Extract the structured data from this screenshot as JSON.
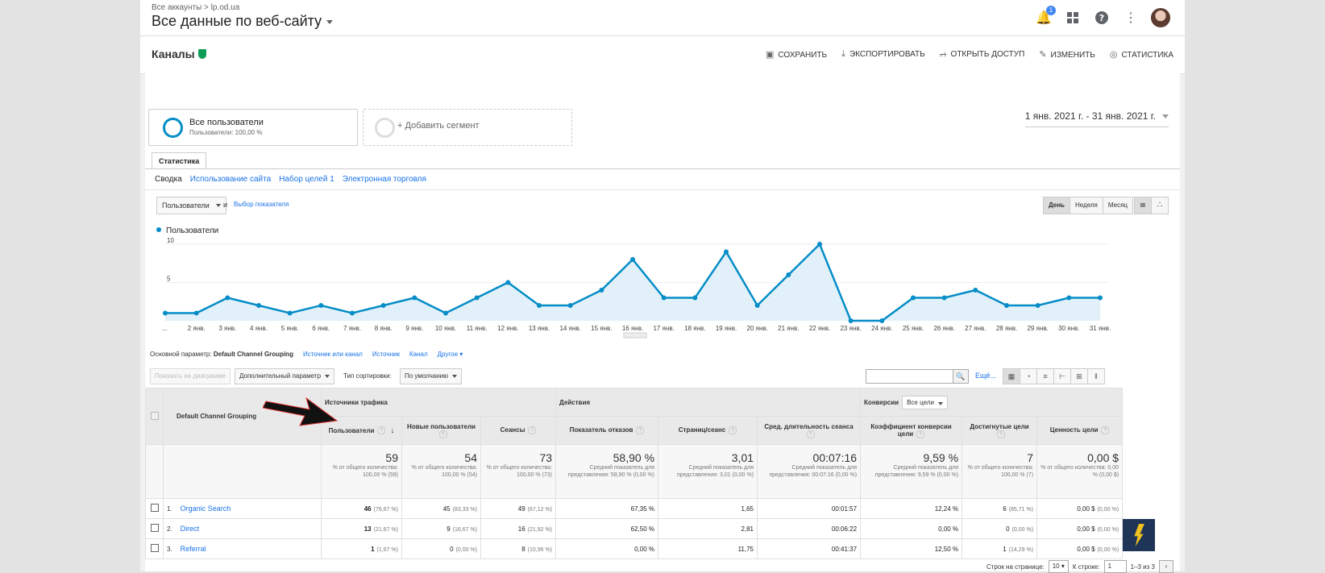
{
  "breadcrumb": "Все аккаунты  >  lp.od.ua",
  "view_title": "Все данные по веб-сайту",
  "notifications_count": "1",
  "report": {
    "title": "Каналы",
    "actions": [
      "СОХРАНИТЬ",
      "ЭКСПОРТИРОВАТЬ",
      "ОТКРЫТЬ ДОСТУП",
      "ИЗМЕНИТЬ",
      "СТАТИСТИКА"
    ]
  },
  "segments": {
    "active_title": "Все пользователи",
    "active_sub": "Пользователи: 100,00 %",
    "add": "+ Добавить сегмент"
  },
  "date_range": "1 янв. 2021 г. - 31 янв. 2021 г.",
  "tab": "Статистика",
  "subtabs": [
    "Сводка",
    "Использование сайта",
    "Набор целей 1",
    "Электронная торговля"
  ],
  "metric_select": "Пользователи",
  "and_label": "и",
  "pick_metric": "Выбор показателя",
  "period_buttons": [
    "День",
    "Неделя",
    "Месяц"
  ],
  "legend_label": "Пользователи",
  "chart_data": {
    "type": "area",
    "series": [
      {
        "name": "Пользователи",
        "values": [
          1,
          1,
          3,
          2,
          1,
          2,
          1,
          2,
          3,
          1,
          3,
          5,
          2,
          2,
          4,
          8,
          3,
          3,
          9,
          2,
          6,
          10,
          0,
          0,
          3,
          3,
          4,
          2,
          2,
          3,
          3
        ]
      }
    ],
    "x": [
      "...",
      "2 янв.",
      "3 янв.",
      "4 янв.",
      "5 янв.",
      "6 янв.",
      "7 янв.",
      "8 янв.",
      "9 янв.",
      "10 янв.",
      "11 янв.",
      "12 янв.",
      "13 янв.",
      "14 янв.",
      "15 янв.",
      "16 янв.",
      "17 янв.",
      "18 янв.",
      "19 янв.",
      "20 янв.",
      "21 янв.",
      "22 янв.",
      "23 янв.",
      "24 янв.",
      "25 янв.",
      "26 янв.",
      "27 янв.",
      "28 янв.",
      "29 янв.",
      "30 янв.",
      "31 янв."
    ],
    "ylim": [
      0,
      10
    ],
    "yticks": [
      "5",
      "10"
    ],
    "color": "#058dc7"
  },
  "dimensions": {
    "label": "Основной параметр:",
    "current": "Default Channel Grouping",
    "links": [
      "Источник или канал",
      "Источник",
      "Канал",
      "Другое"
    ]
  },
  "toolbar": {
    "plot_rows": "Показать на диаграмме",
    "secondary": "Дополнительный параметр",
    "sort_label": "Тип сортировки:",
    "sort_value": "По умолчанию",
    "more": "Ещё..."
  },
  "table": {
    "dim_header": "Default Channel Grouping",
    "groups": [
      "Источники трафика",
      "Действия",
      "Конверсии"
    ],
    "goal_select": "Все цели",
    "columns": [
      "Пользователи",
      "Новые пользователи",
      "Сеансы",
      "Показатель отказов",
      "Страниц/сеанс",
      "Сред. длительность сеанса",
      "Коэффициент конверсии цели",
      "Достигнутые цели",
      "Ценность цели"
    ],
    "totals": [
      {
        "value": "59",
        "sub": "% от общего количества: 100,00 % (59)"
      },
      {
        "value": "54",
        "sub": "% от общего количества: 100,00 % (54)"
      },
      {
        "value": "73",
        "sub": "% от общего количества: 100,00 % (73)"
      },
      {
        "value": "58,90 %",
        "sub": "Средний показатель для представления: 58,90 % (0,00 %)"
      },
      {
        "value": "3,01",
        "sub": "Средний показатель для представления: 3,01 (0,00 %)"
      },
      {
        "value": "00:07:16",
        "sub": "Средний показатель для представления: 00:07:16 (0,00 %)"
      },
      {
        "value": "9,59 %",
        "sub": "Средний показатель для представления: 9,59 % (0,00 %)"
      },
      {
        "value": "7",
        "sub": "% от общего количества: 100,00 % (7)"
      },
      {
        "value": "0,00 $",
        "sub": "% от общего количества: 0,00 % (0,00 $)"
      }
    ],
    "rows": [
      {
        "num": "1.",
        "name": "Organic Search",
        "users": "46",
        "users_pct": "(76,67 %)",
        "new": "45",
        "new_pct": "(83,33 %)",
        "sessions": "49",
        "sessions_pct": "(67,12 %)",
        "bounce": "67,35 %",
        "pps": "1,65",
        "dur": "00:01:57",
        "conv": "12,24 %",
        "goals": "6",
        "goals_pct": "(85,71 %)",
        "value": "0,00 $",
        "value_pct": "(0,00 %)"
      },
      {
        "num": "2.",
        "name": "Direct",
        "users": "13",
        "users_pct": "(21,67 %)",
        "new": "9",
        "new_pct": "(16,67 %)",
        "sessions": "16",
        "sessions_pct": "(21,92 %)",
        "bounce": "62,50 %",
        "pps": "2,81",
        "dur": "00:06:22",
        "conv": "0,00 %",
        "goals": "0",
        "goals_pct": "(0,00 %)",
        "value": "0,00 $",
        "value_pct": "(0,00 %)"
      },
      {
        "num": "3.",
        "name": "Referral",
        "users": "1",
        "users_pct": "(1,67 %)",
        "new": "0",
        "new_pct": "(0,00 %)",
        "sessions": "8",
        "sessions_pct": "(10,96 %)",
        "bounce": "0,00 %",
        "pps": "11,75",
        "dur": "00:41:37",
        "conv": "12,50 %",
        "goals": "1",
        "goals_pct": "(14,29 %)",
        "value": "0,00 $",
        "value_pct": "(0,00 %)"
      }
    ]
  },
  "pager": {
    "rows_label": "Строк на странице:",
    "rows_value": "10",
    "goto_label": "К строке:",
    "goto_value": "1",
    "range": "1–3 из 3"
  }
}
